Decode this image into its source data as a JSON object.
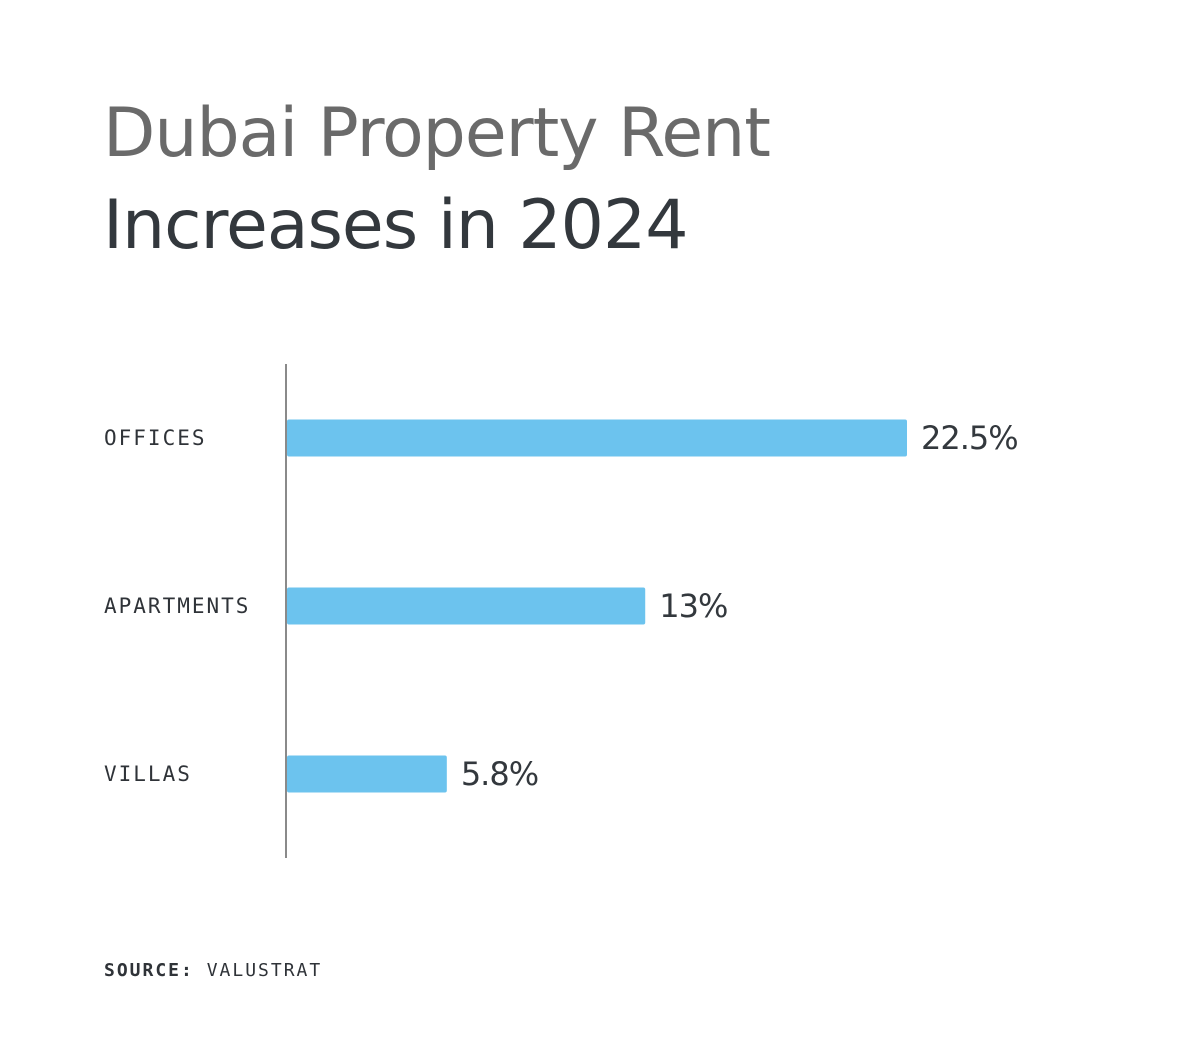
{
  "chart_data": {
    "type": "bar",
    "orientation": "horizontal",
    "title_line_1": "Dubai Property Rent",
    "title_line_2": "Increases in 2024",
    "categories": [
      "OFFICES",
      "APARTMENTS",
      "VILLAS"
    ],
    "values": [
      22.5,
      13,
      5.8
    ],
    "value_labels": [
      "22.5%",
      "13%",
      "5.8%"
    ],
    "unit": "%",
    "xlim": [
      0,
      25
    ],
    "grid": false,
    "legend": "none",
    "bar_color": "#6cc3ee",
    "axis_color": "#8a8a8a"
  },
  "source": {
    "label": "SOURCE:",
    "value": "VALUSTRAT"
  }
}
